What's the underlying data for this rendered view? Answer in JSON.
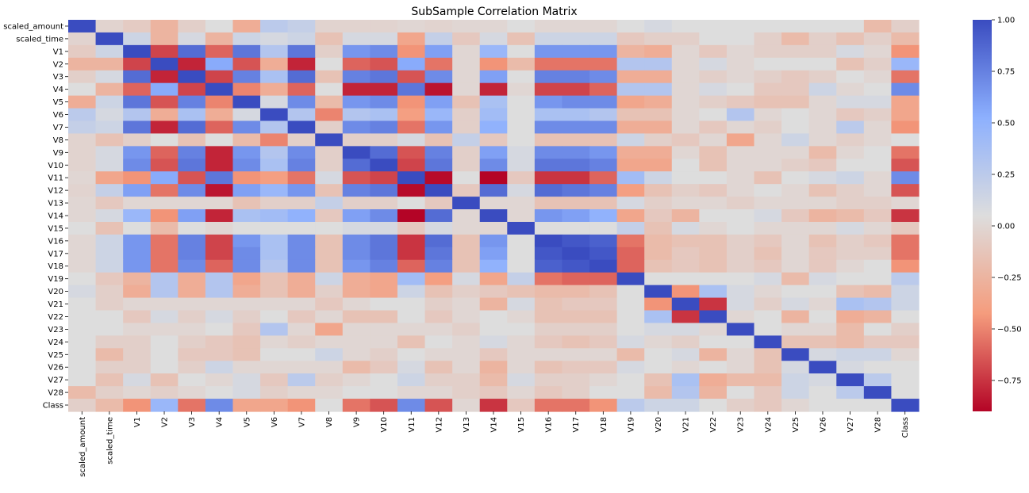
{
  "chart_data": {
    "type": "heatmap",
    "title": "SubSample Correlation Matrix",
    "labels": [
      "scaled_amount",
      "scaled_time",
      "V1",
      "V2",
      "V3",
      "V4",
      "V5",
      "V6",
      "V7",
      "V8",
      "V9",
      "V10",
      "V11",
      "V12",
      "V13",
      "V14",
      "V15",
      "V16",
      "V17",
      "V18",
      "V19",
      "V20",
      "V21",
      "V22",
      "V23",
      "V24",
      "V25",
      "V26",
      "V27",
      "V28",
      "Class"
    ],
    "colormap": "coolwarm_r",
    "color_range": [
      -0.9,
      1.0
    ],
    "colorbar_ticks": [
      {
        "value": 1.0,
        "label": "1.00"
      },
      {
        "value": 0.75,
        "label": "0.75"
      },
      {
        "value": 0.5,
        "label": "0.50"
      },
      {
        "value": 0.25,
        "label": "0.25"
      },
      {
        "value": 0.0,
        "label": "0.00"
      },
      {
        "value": -0.25,
        "label": "−0.25"
      },
      {
        "value": -0.5,
        "label": "−0.50"
      },
      {
        "value": -0.75,
        "label": "−0.75"
      }
    ],
    "values": [
      [
        1.0,
        -0.02,
        -0.08,
        -0.25,
        -0.05,
        0.05,
        -0.3,
        0.25,
        0.2,
        -0.02,
        -0.02,
        -0.02,
        0.0,
        -0.02,
        0.0,
        0.0,
        0.05,
        0.0,
        0.0,
        0.0,
        0.05,
        0.1,
        0.05,
        0.05,
        0.05,
        0.05,
        0.05,
        0.05,
        0.05,
        -0.2,
        -0.05
      ],
      [
        -0.02,
        1.0,
        0.15,
        -0.25,
        0.1,
        -0.25,
        0.15,
        0.1,
        0.15,
        -0.15,
        0.1,
        0.1,
        -0.35,
        0.2,
        -0.1,
        0.1,
        -0.15,
        0.15,
        0.15,
        0.15,
        -0.1,
        -0.05,
        -0.05,
        0.05,
        0.05,
        -0.05,
        -0.2,
        -0.05,
        -0.15,
        -0.05,
        -0.2
      ],
      [
        -0.08,
        0.15,
        1.0,
        -0.7,
        0.85,
        -0.6,
        0.8,
        0.3,
        0.8,
        -0.05,
        0.65,
        0.7,
        -0.45,
        0.6,
        0.0,
        0.45,
        0.05,
        0.65,
        0.65,
        0.65,
        -0.25,
        -0.3,
        0.0,
        -0.1,
        0.0,
        -0.05,
        -0.05,
        -0.05,
        0.1,
        0.0,
        -0.45
      ],
      [
        -0.25,
        -0.25,
        -0.7,
        1.0,
        -0.8,
        0.55,
        -0.65,
        -0.3,
        -0.8,
        0.05,
        -0.6,
        -0.65,
        0.55,
        -0.55,
        0.0,
        -0.45,
        -0.2,
        -0.55,
        -0.55,
        -0.55,
        0.3,
        0.3,
        0.0,
        0.1,
        0.0,
        0.05,
        0.05,
        0.05,
        -0.15,
        -0.05,
        0.45
      ],
      [
        -0.05,
        0.1,
        0.85,
        -0.8,
        1.0,
        -0.7,
        0.75,
        0.35,
        0.85,
        -0.15,
        0.75,
        0.8,
        -0.65,
        0.7,
        0.0,
        0.6,
        0.05,
        0.75,
        0.75,
        0.7,
        -0.3,
        -0.3,
        0.0,
        -0.05,
        0.0,
        -0.05,
        -0.1,
        -0.05,
        0.05,
        0.0,
        -0.55
      ],
      [
        0.05,
        -0.25,
        -0.6,
        0.55,
        -0.7,
        1.0,
        -0.5,
        -0.3,
        -0.6,
        0.05,
        -0.8,
        -0.8,
        0.8,
        -0.85,
        0.0,
        -0.8,
        0.0,
        -0.7,
        -0.7,
        -0.6,
        0.3,
        0.3,
        0.0,
        0.1,
        0.05,
        -0.1,
        -0.1,
        0.15,
        0.0,
        0.05,
        0.7
      ],
      [
        -0.3,
        0.15,
        0.8,
        -0.65,
        0.75,
        -0.5,
        1.0,
        0.1,
        0.7,
        -0.2,
        0.65,
        0.7,
        -0.45,
        0.6,
        -0.15,
        0.35,
        0.05,
        0.65,
        0.7,
        0.7,
        -0.35,
        -0.3,
        0.0,
        -0.05,
        -0.1,
        -0.15,
        -0.15,
        0.0,
        0.1,
        0.1,
        -0.35
      ],
      [
        0.25,
        0.1,
        0.3,
        -0.3,
        0.35,
        -0.3,
        0.1,
        1.0,
        0.3,
        -0.5,
        0.3,
        0.35,
        -0.4,
        0.45,
        -0.05,
        0.4,
        0.05,
        0.35,
        0.35,
        0.3,
        -0.15,
        -0.15,
        0.0,
        0.05,
        0.3,
        0.0,
        0.05,
        0.0,
        -0.1,
        -0.05,
        -0.35
      ],
      [
        0.2,
        0.15,
        0.8,
        -0.8,
        0.85,
        -0.6,
        0.7,
        0.3,
        1.0,
        -0.05,
        0.7,
        0.75,
        -0.55,
        0.65,
        -0.05,
        0.5,
        0.05,
        0.7,
        0.7,
        0.7,
        -0.3,
        -0.3,
        0.0,
        -0.1,
        0.0,
        -0.05,
        0.05,
        0.0,
        0.25,
        0.0,
        -0.45
      ],
      [
        -0.02,
        -0.15,
        -0.05,
        0.05,
        -0.15,
        0.05,
        -0.2,
        -0.5,
        -0.05,
        1.0,
        -0.05,
        -0.05,
        0.1,
        -0.15,
        0.2,
        -0.1,
        0.05,
        -0.15,
        -0.15,
        -0.15,
        0.15,
        -0.05,
        -0.1,
        0.0,
        -0.35,
        0.0,
        0.15,
        0.0,
        -0.05,
        0.0,
        0.05
      ],
      [
        -0.02,
        0.1,
        0.65,
        -0.6,
        0.75,
        -0.8,
        0.65,
        0.3,
        0.7,
        -0.05,
        1.0,
        0.85,
        -0.65,
        0.75,
        -0.05,
        0.6,
        0.1,
        0.7,
        0.7,
        0.65,
        -0.3,
        -0.3,
        0.0,
        -0.15,
        0.0,
        0.0,
        0.0,
        -0.2,
        0.0,
        0.05,
        -0.55
      ],
      [
        -0.02,
        0.1,
        0.7,
        -0.65,
        0.8,
        -0.8,
        0.7,
        0.35,
        0.75,
        -0.05,
        0.85,
        1.0,
        -0.7,
        0.8,
        -0.05,
        0.7,
        0.1,
        0.8,
        0.8,
        0.75,
        -0.35,
        -0.35,
        0.05,
        -0.15,
        0.0,
        0.0,
        -0.05,
        -0.1,
        0.05,
        0.05,
        -0.65
      ],
      [
        0.0,
        -0.35,
        -0.45,
        0.55,
        -0.65,
        0.8,
        -0.45,
        -0.4,
        -0.55,
        0.1,
        -0.65,
        -0.7,
        1.0,
        -0.88,
        0.05,
        -0.9,
        -0.1,
        -0.75,
        -0.75,
        -0.6,
        0.4,
        0.15,
        0.05,
        0.05,
        0.0,
        -0.15,
        0.05,
        0.1,
        0.15,
        0.0,
        0.7
      ],
      [
        -0.02,
        0.2,
        0.6,
        -0.55,
        0.7,
        -0.85,
        0.6,
        0.45,
        0.65,
        -0.15,
        0.75,
        0.8,
        -0.88,
        1.0,
        -0.1,
        0.85,
        0.1,
        0.85,
        0.8,
        0.75,
        -0.4,
        -0.15,
        -0.05,
        -0.1,
        0.0,
        0.05,
        0.0,
        -0.15,
        -0.05,
        0.0,
        -0.65
      ],
      [
        0.0,
        -0.1,
        0.0,
        0.0,
        0.0,
        0.0,
        -0.15,
        -0.05,
        -0.05,
        0.2,
        -0.05,
        -0.05,
        0.05,
        -0.1,
        1.0,
        0.0,
        0.0,
        -0.15,
        -0.15,
        -0.15,
        0.1,
        -0.05,
        0.0,
        0.0,
        -0.05,
        0.0,
        0.0,
        0.0,
        -0.05,
        -0.05,
        0.0
      ],
      [
        0.0,
        0.1,
        0.45,
        -0.45,
        0.6,
        -0.8,
        0.35,
        0.4,
        0.5,
        -0.1,
        0.6,
        0.7,
        -0.9,
        0.85,
        0.0,
        1.0,
        0.0,
        0.65,
        0.6,
        0.5,
        -0.35,
        -0.1,
        -0.25,
        0.05,
        0.05,
        0.1,
        -0.1,
        -0.25,
        -0.2,
        -0.1,
        -0.75
      ],
      [
        0.05,
        -0.15,
        0.05,
        -0.2,
        0.05,
        0.0,
        0.05,
        0.05,
        0.05,
        0.05,
        0.1,
        0.1,
        -0.1,
        0.1,
        0.0,
        0.0,
        1.0,
        0.05,
        0.05,
        0.05,
        0.2,
        -0.15,
        0.1,
        0.0,
        0.05,
        0.0,
        0.0,
        0.0,
        0.1,
        0.0,
        -0.1
      ],
      [
        0.0,
        0.15,
        0.65,
        -0.55,
        0.75,
        -0.7,
        0.65,
        0.35,
        0.7,
        -0.15,
        0.7,
        0.8,
        -0.75,
        0.85,
        -0.15,
        0.65,
        0.05,
        1.0,
        0.95,
        0.9,
        -0.55,
        -0.2,
        -0.15,
        -0.15,
        -0.05,
        -0.1,
        0.0,
        -0.15,
        -0.05,
        -0.1,
        -0.55
      ],
      [
        0.0,
        0.15,
        0.65,
        -0.55,
        0.75,
        -0.7,
        0.7,
        0.35,
        0.7,
        -0.15,
        0.7,
        0.8,
        -0.75,
        0.8,
        -0.15,
        0.6,
        0.05,
        0.95,
        1.0,
        0.95,
        -0.6,
        -0.2,
        -0.1,
        -0.15,
        -0.05,
        -0.15,
        0.0,
        -0.1,
        -0.05,
        -0.05,
        -0.55
      ],
      [
        0.0,
        0.15,
        0.65,
        -0.55,
        0.7,
        -0.6,
        0.7,
        0.3,
        0.7,
        -0.15,
        0.65,
        0.75,
        -0.6,
        0.75,
        -0.15,
        0.5,
        0.05,
        0.9,
        0.95,
        1.0,
        -0.6,
        -0.15,
        -0.1,
        -0.15,
        -0.05,
        -0.1,
        0.0,
        -0.1,
        0.0,
        0.05,
        -0.45
      ],
      [
        0.05,
        -0.1,
        -0.25,
        0.3,
        -0.3,
        0.3,
        -0.35,
        -0.15,
        -0.3,
        0.15,
        -0.3,
        -0.35,
        0.4,
        -0.4,
        0.1,
        -0.35,
        0.2,
        -0.55,
        -0.6,
        -0.6,
        1.0,
        0.05,
        0.05,
        0.05,
        0.05,
        0.1,
        -0.2,
        0.1,
        0.05,
        0.05,
        0.25
      ],
      [
        0.1,
        -0.05,
        -0.3,
        0.3,
        -0.3,
        0.3,
        -0.3,
        -0.15,
        -0.3,
        -0.05,
        -0.3,
        -0.35,
        0.15,
        -0.15,
        -0.05,
        -0.1,
        -0.15,
        -0.2,
        -0.2,
        -0.15,
        0.05,
        1.0,
        -0.45,
        0.35,
        0.1,
        0.0,
        0.05,
        0.05,
        -0.15,
        -0.2,
        0.15
      ],
      [
        0.05,
        -0.05,
        0.0,
        0.0,
        0.0,
        0.0,
        0.0,
        0.0,
        0.0,
        -0.1,
        0.0,
        0.05,
        0.05,
        -0.05,
        0.0,
        -0.25,
        0.1,
        -0.15,
        -0.1,
        -0.1,
        0.05,
        -0.45,
        1.0,
        -0.75,
        0.1,
        -0.05,
        0.1,
        0.0,
        0.35,
        0.3,
        0.15
      ],
      [
        0.05,
        0.05,
        -0.1,
        0.1,
        -0.05,
        0.1,
        -0.05,
        0.05,
        -0.1,
        0.0,
        -0.15,
        -0.15,
        0.05,
        -0.1,
        0.0,
        0.05,
        0.0,
        -0.15,
        -0.15,
        -0.15,
        0.05,
        0.35,
        -0.75,
        1.0,
        0.0,
        0.05,
        -0.25,
        0.05,
        -0.3,
        -0.25,
        0.05
      ],
      [
        0.05,
        0.05,
        0.0,
        0.0,
        0.0,
        0.05,
        -0.1,
        0.3,
        0.0,
        -0.35,
        0.0,
        0.0,
        0.0,
        0.0,
        -0.05,
        0.05,
        0.05,
        -0.05,
        -0.05,
        -0.05,
        0.05,
        0.1,
        0.1,
        0.0,
        1.0,
        0.05,
        0.0,
        0.0,
        -0.2,
        0.05,
        -0.05
      ],
      [
        0.05,
        -0.05,
        -0.05,
        0.05,
        -0.05,
        -0.1,
        -0.15,
        0.0,
        -0.05,
        0.0,
        0.0,
        0.0,
        -0.15,
        0.05,
        0.0,
        0.1,
        0.0,
        -0.1,
        -0.15,
        -0.1,
        0.1,
        0.0,
        -0.05,
        0.05,
        0.05,
        1.0,
        -0.15,
        -0.15,
        -0.2,
        -0.1,
        -0.1
      ],
      [
        0.05,
        -0.2,
        -0.05,
        0.05,
        -0.1,
        -0.1,
        -0.15,
        0.05,
        0.05,
        0.15,
        0.0,
        -0.05,
        0.05,
        0.0,
        0.0,
        -0.1,
        0.0,
        0.0,
        0.0,
        0.0,
        -0.2,
        0.05,
        0.1,
        -0.25,
        0.0,
        -0.15,
        1.0,
        0.1,
        0.15,
        0.15,
        0.0
      ],
      [
        0.05,
        -0.05,
        -0.05,
        0.05,
        -0.05,
        0.15,
        0.0,
        0.0,
        0.0,
        0.0,
        -0.2,
        -0.1,
        0.1,
        -0.15,
        0.0,
        -0.25,
        0.0,
        -0.15,
        -0.1,
        -0.1,
        0.1,
        0.05,
        0.0,
        0.05,
        0.0,
        -0.15,
        0.1,
        1.0,
        0.1,
        0.05,
        0.05
      ],
      [
        0.05,
        -0.15,
        0.1,
        -0.15,
        0.05,
        0.0,
        0.1,
        -0.1,
        0.25,
        -0.05,
        0.0,
        0.05,
        0.15,
        -0.05,
        -0.05,
        -0.2,
        0.1,
        -0.05,
        -0.05,
        0.0,
        0.05,
        -0.15,
        0.35,
        -0.3,
        -0.2,
        -0.2,
        0.15,
        0.1,
        1.0,
        0.25,
        0.05
      ],
      [
        -0.2,
        -0.05,
        0.0,
        -0.05,
        0.0,
        0.05,
        0.1,
        -0.05,
        0.0,
        0.0,
        0.05,
        0.05,
        0.0,
        0.0,
        -0.05,
        -0.1,
        0.0,
        -0.1,
        -0.05,
        0.05,
        0.05,
        -0.2,
        0.3,
        -0.25,
        0.05,
        -0.1,
        0.15,
        0.05,
        0.25,
        1.0,
        0.05
      ],
      [
        -0.05,
        -0.2,
        -0.45,
        0.45,
        -0.55,
        0.7,
        -0.35,
        -0.35,
        -0.45,
        0.05,
        -0.55,
        -0.65,
        0.7,
        -0.65,
        0.0,
        -0.75,
        -0.1,
        -0.55,
        -0.55,
        -0.45,
        0.25,
        0.15,
        0.15,
        0.05,
        -0.05,
        -0.1,
        0.0,
        0.05,
        0.05,
        0.05,
        1.0
      ]
    ]
  }
}
